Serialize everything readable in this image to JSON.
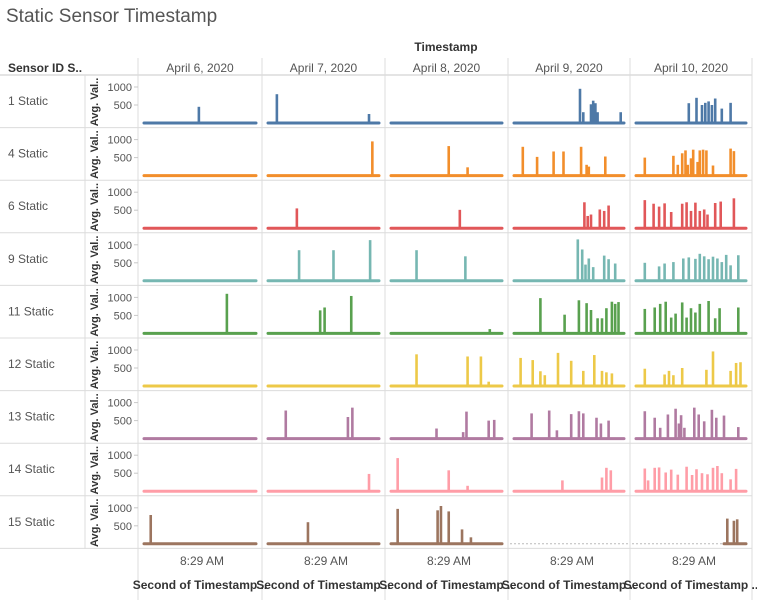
{
  "title": "Static Sensor Timestamp",
  "chart_data": {
    "type": "bar",
    "subtype": "small-multiples",
    "column_header": "Timestamp",
    "row_header": "Sensor ID S..",
    "y_label": "Avg. Val..",
    "y_ticks": [
      500,
      1000
    ],
    "ylim": [
      0,
      1100
    ],
    "x_tick_label": "8:29 AM",
    "x_axis_label": "Second of Timestamp ..",
    "grid": true,
    "columns": [
      "April 6, 2020",
      "April 7, 2020",
      "April 8, 2020",
      "April 9, 2020",
      "April 10, 2020"
    ],
    "colors": [
      "#4e79a7",
      "#f28e2b",
      "#e15759",
      "#76b7b2",
      "#59a14f",
      "#edc948",
      "#b07aa1",
      "#ff9da7",
      "#9c755f"
    ],
    "rows": [
      {
        "label": "1 Static",
        "cells": [
          [
            [
              0.49,
              450
            ]
          ],
          [
            [
              0.08,
              800
            ],
            [
              0.91,
              250
            ]
          ],
          [],
          [
            [
              0.6,
              950
            ],
            [
              0.63,
              300
            ],
            [
              0.7,
              520
            ],
            [
              0.72,
              620
            ],
            [
              0.74,
              550
            ],
            [
              0.76,
              300
            ],
            [
              0.97,
              300
            ]
          ],
          [
            [
              0.48,
              550
            ],
            [
              0.55,
              700
            ],
            [
              0.6,
              500
            ],
            [
              0.63,
              560
            ],
            [
              0.66,
              600
            ],
            [
              0.69,
              500
            ],
            [
              0.72,
              680
            ],
            [
              0.78,
              400
            ],
            [
              0.86,
              560
            ]
          ]
        ]
      },
      {
        "label": "4 Static",
        "cells": [
          [],
          [
            [
              0.94,
              950
            ]
          ],
          [
            [
              0.52,
              820
            ],
            [
              0.69,
              230
            ]
          ],
          [
            [
              0.08,
              800
            ],
            [
              0.21,
              520
            ],
            [
              0.36,
              670
            ],
            [
              0.45,
              670
            ],
            [
              0.61,
              800
            ],
            [
              0.66,
              300
            ],
            [
              0.68,
              250
            ],
            [
              0.83,
              530
            ]
          ],
          [
            [
              0.08,
              500
            ],
            [
              0.34,
              550
            ],
            [
              0.38,
              300
            ],
            [
              0.42,
              620
            ],
            [
              0.45,
              700
            ],
            [
              0.47,
              300
            ],
            [
              0.5,
              480
            ],
            [
              0.52,
              720
            ],
            [
              0.56,
              380
            ],
            [
              0.58,
              700
            ],
            [
              0.61,
              720
            ],
            [
              0.64,
              700
            ],
            [
              0.7,
              280
            ],
            [
              0.86,
              750
            ],
            [
              0.89,
              680
            ]
          ]
        ]
      },
      {
        "label": "6 Static",
        "cells": [
          [],
          [
            [
              0.26,
              550
            ]
          ],
          [
            [
              0.62,
              510
            ]
          ],
          [
            [
              0.64,
              720
            ],
            [
              0.67,
              340
            ],
            [
              0.7,
              380
            ],
            [
              0.78,
              520
            ],
            [
              0.82,
              480
            ],
            [
              0.86,
              630
            ]
          ],
          [
            [
              0.08,
              780
            ],
            [
              0.16,
              680
            ],
            [
              0.21,
              600
            ],
            [
              0.26,
              690
            ],
            [
              0.32,
              450
            ],
            [
              0.42,
              680
            ],
            [
              0.46,
              720
            ],
            [
              0.5,
              480
            ],
            [
              0.54,
              710
            ],
            [
              0.58,
              480
            ],
            [
              0.62,
              520
            ],
            [
              0.65,
              380
            ],
            [
              0.72,
              700
            ],
            [
              0.77,
              740
            ],
            [
              0.89,
              830
            ]
          ]
        ]
      },
      {
        "label": "9 Static",
        "cells": [
          [],
          [
            [
              0.28,
              850
            ],
            [
              0.59,
              850
            ],
            [
              0.92,
              1130
            ]
          ],
          [
            [
              0.23,
              850
            ],
            [
              0.67,
              680
            ]
          ],
          [
            [
              0.58,
              1150
            ],
            [
              0.62,
              870
            ],
            [
              0.65,
              450
            ],
            [
              0.68,
              620
            ],
            [
              0.72,
              380
            ],
            [
              0.82,
              700
            ],
            [
              0.86,
              600
            ],
            [
              0.92,
              480
            ]
          ],
          [
            [
              0.08,
              500
            ],
            [
              0.21,
              400
            ],
            [
              0.26,
              480
            ],
            [
              0.34,
              520
            ],
            [
              0.43,
              620
            ],
            [
              0.48,
              650
            ],
            [
              0.54,
              610
            ],
            [
              0.58,
              750
            ],
            [
              0.62,
              680
            ],
            [
              0.66,
              600
            ],
            [
              0.7,
              670
            ],
            [
              0.74,
              620
            ],
            [
              0.78,
              520
            ],
            [
              0.82,
              720
            ],
            [
              0.86,
              430
            ],
            [
              0.93,
              710
            ]
          ]
        ]
      },
      {
        "label": "11 Static",
        "cells": [
          [
            [
              0.74,
              1100
            ]
          ],
          [
            [
              0.47,
              640
            ],
            [
              0.51,
              720
            ],
            [
              0.75,
              1040
            ]
          ],
          [
            [
              0.89,
              120
            ]
          ],
          [
            [
              0.24,
              980
            ],
            [
              0.46,
              520
            ],
            [
              0.59,
              920
            ],
            [
              0.66,
              840
            ],
            [
              0.7,
              650
            ],
            [
              0.76,
              420
            ],
            [
              0.8,
              420
            ],
            [
              0.84,
              700
            ],
            [
              0.89,
              880
            ],
            [
              0.92,
              820
            ],
            [
              0.95,
              870
            ]
          ],
          [
            [
              0.08,
              680
            ],
            [
              0.17,
              720
            ],
            [
              0.22,
              820
            ],
            [
              0.27,
              880
            ],
            [
              0.32,
              440
            ],
            [
              0.36,
              550
            ],
            [
              0.42,
              860
            ],
            [
              0.46,
              440
            ],
            [
              0.5,
              700
            ],
            [
              0.54,
              580
            ],
            [
              0.58,
              820
            ],
            [
              0.66,
              900
            ],
            [
              0.72,
              420
            ],
            [
              0.76,
              700
            ],
            [
              0.93,
              720
            ]
          ]
        ]
      },
      {
        "label": "12 Static",
        "cells": [
          [],
          [],
          [
            [
              0.23,
              880
            ],
            [
              0.69,
              820
            ],
            [
              0.81,
              820
            ],
            [
              0.88,
              120
            ]
          ],
          [
            [
              0.06,
              780
            ],
            [
              0.17,
              720
            ],
            [
              0.24,
              410
            ],
            [
              0.28,
              300
            ],
            [
              0.4,
              920
            ],
            [
              0.52,
              700
            ],
            [
              0.63,
              420
            ],
            [
              0.73,
              860
            ],
            [
              0.8,
              420
            ],
            [
              0.84,
              380
            ],
            [
              0.89,
              350
            ]
          ],
          [
            [
              0.08,
              480
            ],
            [
              0.26,
              320
            ],
            [
              0.3,
              420
            ],
            [
              0.34,
              300
            ],
            [
              0.42,
              500
            ],
            [
              0.64,
              450
            ],
            [
              0.7,
              960
            ],
            [
              0.86,
              420
            ],
            [
              0.91,
              640
            ],
            [
              0.95,
              660
            ]
          ]
        ]
      },
      {
        "label": "13 Static",
        "cells": [
          [],
          [
            [
              0.16,
              780
            ],
            [
              0.72,
              600
            ],
            [
              0.76,
              860
            ]
          ],
          [
            [
              0.41,
              280
            ],
            [
              0.65,
              180
            ],
            [
              0.68,
              750
            ],
            [
              0.88,
              500
            ],
            [
              0.93,
              520
            ]
          ],
          [
            [
              0.16,
              700
            ],
            [
              0.32,
              780
            ],
            [
              0.39,
              230
            ],
            [
              0.52,
              680
            ],
            [
              0.59,
              760
            ],
            [
              0.63,
              700
            ],
            [
              0.75,
              580
            ],
            [
              0.79,
              420
            ],
            [
              0.86,
              500
            ]
          ],
          [
            [
              0.08,
              760
            ],
            [
              0.17,
              580
            ],
            [
              0.22,
              300
            ],
            [
              0.29,
              670
            ],
            [
              0.36,
              830
            ],
            [
              0.39,
              420
            ],
            [
              0.41,
              650
            ],
            [
              0.44,
              300
            ],
            [
              0.53,
              860
            ],
            [
              0.57,
              670
            ],
            [
              0.62,
              480
            ],
            [
              0.69,
              800
            ],
            [
              0.73,
              580
            ],
            [
              0.8,
              640
            ],
            [
              0.93,
              320
            ]
          ]
        ]
      },
      {
        "label": "14 Static",
        "cells": [
          [],
          [
            [
              0.91,
              480
            ]
          ],
          [
            [
              0.06,
              920
            ],
            [
              0.52,
              580
            ],
            [
              0.69,
              150
            ]
          ],
          [
            [
              0.44,
              300
            ],
            [
              0.8,
              380
            ],
            [
              0.84,
              650
            ],
            [
              0.88,
              580
            ]
          ],
          [
            [
              0.08,
              630
            ],
            [
              0.11,
              300
            ],
            [
              0.17,
              650
            ],
            [
              0.21,
              660
            ],
            [
              0.27,
              520
            ],
            [
              0.32,
              600
            ],
            [
              0.38,
              460
            ],
            [
              0.46,
              680
            ],
            [
              0.51,
              450
            ],
            [
              0.55,
              610
            ],
            [
              0.6,
              500
            ],
            [
              0.65,
              470
            ],
            [
              0.7,
              650
            ],
            [
              0.74,
              700
            ],
            [
              0.78,
              500
            ],
            [
              0.86,
              330
            ],
            [
              0.91,
              620
            ]
          ]
        ]
      },
      {
        "label": "15 Static",
        "cells": [
          [
            [
              0.06,
              800
            ]
          ],
          [
            [
              0.36,
              600
            ]
          ],
          [
            [
              0.06,
              970
            ],
            [
              0.42,
              930
            ],
            [
              0.45,
              1050
            ],
            [
              0.52,
              900
            ],
            [
              0.64,
              400
            ],
            [
              0.72,
              180
            ]
          ],
          [],
          [
            [
              0.83,
              700
            ],
            [
              0.89,
              640
            ],
            [
              0.92,
              680
            ]
          ]
        ]
      }
    ]
  }
}
